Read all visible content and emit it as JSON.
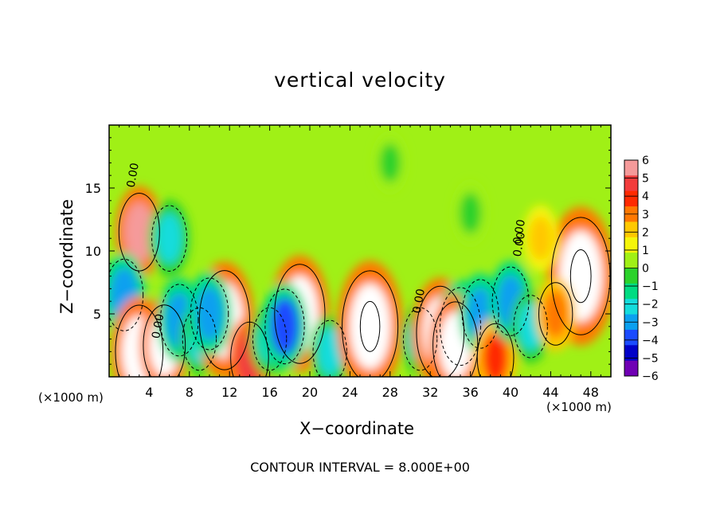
{
  "chart_data": {
    "type": "heatmap",
    "title": "vertical velocity",
    "xlabel": "X−coordinate",
    "ylabel": "Z−coordinate",
    "x_unit_label": "(×1000 m)",
    "z_unit_label": "(×1000 m)",
    "footer": "CONTOUR INTERVAL = 8.000E+00",
    "xlim": [
      0,
      50
    ],
    "ylim": [
      0,
      20
    ],
    "x_ticks": [
      4,
      8,
      12,
      16,
      20,
      24,
      28,
      32,
      36,
      40,
      44,
      48
    ],
    "y_ticks": [
      5,
      10,
      15
    ],
    "colorbar": {
      "ticks": [
        "6",
        "5",
        "4",
        "3",
        "2",
        "1",
        "0",
        "−1",
        "−2",
        "−3",
        "−4",
        "−5",
        "−6"
      ],
      "colors": [
        "#f59a9a",
        "#f23c3c",
        "#ff2a00",
        "#ff7800",
        "#ffc800",
        "#f5f50a",
        "#a0f016",
        "#2bd22b",
        "#00dc82",
        "#14dcdc",
        "#0aa0f0",
        "#1b4bff",
        "#0000c8",
        "#7000b4"
      ]
    },
    "contour_labels": [
      "0.00",
      "0.00",
      "0.00",
      "0.00",
      "0.00"
    ],
    "features": [
      {
        "x": 3,
        "z": 11.5,
        "w": 5.5
      },
      {
        "x": 6,
        "z": 11,
        "w": -3.5
      },
      {
        "x": 1.5,
        "z": 6.5,
        "w": -4.5
      },
      {
        "x": 3,
        "z": 2,
        "w": 8
      },
      {
        "x": 5.5,
        "z": 2.5,
        "w": 6
      },
      {
        "x": 7,
        "z": 4.5,
        "w": -4.5
      },
      {
        "x": 9,
        "z": 3,
        "w": -3
      },
      {
        "x": 11.5,
        "z": 4.5,
        "w": 9
      },
      {
        "x": 10,
        "z": 5,
        "w": -4.5
      },
      {
        "x": 14,
        "z": 1.5,
        "w": 4.5
      },
      {
        "x": 16,
        "z": 3,
        "w": -3
      },
      {
        "x": 19,
        "z": 5,
        "w": 9
      },
      {
        "x": 17.5,
        "z": 4,
        "w": -5
      },
      {
        "x": 22,
        "z": 2,
        "w": -3
      },
      {
        "x": 26,
        "z": 4,
        "w": 11
      },
      {
        "x": 31,
        "z": 3,
        "w": -3
      },
      {
        "x": 33,
        "z": 3.5,
        "w": 8
      },
      {
        "x": 35,
        "z": 4,
        "w": -5.5
      },
      {
        "x": 34.5,
        "z": 2.5,
        "w": 7
      },
      {
        "x": 37,
        "z": 5,
        "w": -4
      },
      {
        "x": 38.5,
        "z": 1.5,
        "w": 4
      },
      {
        "x": 40,
        "z": 6,
        "w": -4
      },
      {
        "x": 42,
        "z": 4,
        "w": -3
      },
      {
        "x": 47,
        "z": 8,
        "w": 12
      },
      {
        "x": 44.5,
        "z": 5,
        "w": 3
      },
      {
        "x": 43,
        "z": 11,
        "w": 2
      },
      {
        "x": 36,
        "z": 13,
        "w": -1.5
      },
      {
        "x": 28,
        "z": 17,
        "w": -1
      }
    ]
  }
}
